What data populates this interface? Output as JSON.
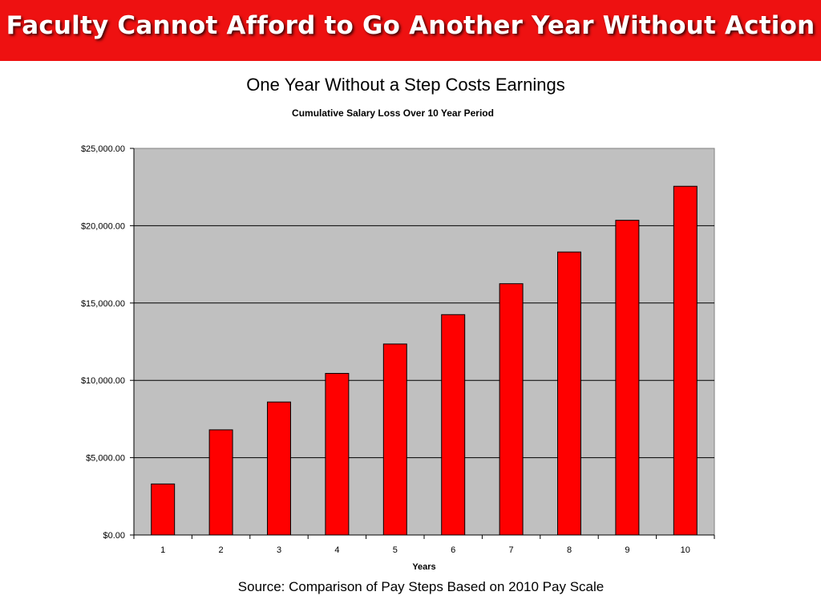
{
  "slide": {
    "title": "Faculty Cannot Afford to Go Another Year Without Action",
    "heading": "One Year Without a Step Costs Earnings",
    "source": "Source: Comparison of Pay Steps Based on 2010 Pay Scale"
  },
  "colors": {
    "banner": "#ee1111",
    "bar": "#ff0000",
    "plot_background": "#c0c0c0"
  },
  "chart_data": {
    "type": "bar",
    "title": "Cumulative Salary Loss Over 10 Year Period",
    "xlabel": "Years",
    "ylabel": "",
    "categories": [
      "1",
      "2",
      "3",
      "4",
      "5",
      "6",
      "7",
      "8",
      "9",
      "10"
    ],
    "values": [
      3300,
      6800,
      8600,
      10450,
      12350,
      14250,
      16250,
      18300,
      20350,
      22550
    ],
    "ylim": [
      0,
      25000
    ],
    "yticks": [
      0,
      5000,
      10000,
      15000,
      20000,
      25000
    ],
    "ytick_labels": [
      "$0.00",
      "$5,000.00",
      "$10,000.00",
      "$15,000.00",
      "$20,000.00",
      "$25,000.00"
    ],
    "grid": true,
    "legend": "none"
  }
}
